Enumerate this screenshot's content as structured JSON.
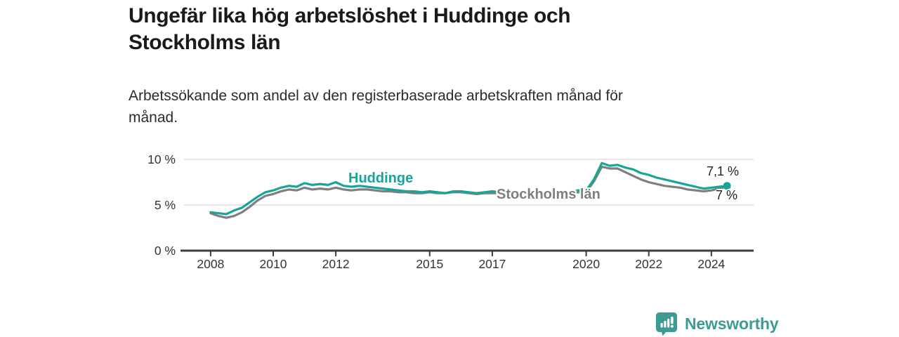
{
  "header": {
    "title_lines": [
      "Ungefär lika hög arbetslöshet i Huddinge och",
      "Stockholms län"
    ],
    "subtitle_lines": [
      "Arbetssökande som andel av den registerbaserade arbetskraften månad för",
      "månad."
    ]
  },
  "colors": {
    "huddinge_teal": "#17a59a",
    "stockholm_gray": "#7f7f7f",
    "grid": "#dddddd",
    "axis": "#3d3d3d",
    "tick_text": "#333333",
    "value_text": "#222222",
    "logo_teal": "#3e9b94"
  },
  "chart_data": {
    "type": "line",
    "title": "Ungefär lika hög arbetslöshet i Huddinge och Stockholms län",
    "subtitle": "Arbetssökande som andel av den registerbaserade arbetskraften månad för månad.",
    "xlabel": "",
    "ylabel": "",
    "xlim": [
      2007.15,
      2025.35
    ],
    "ylim": [
      0,
      10
    ],
    "grid": "horizontal",
    "legend_position": "inline-labels",
    "yticks": [
      {
        "value": 0,
        "label": "0 %"
      },
      {
        "value": 5,
        "label": "5 %"
      },
      {
        "value": 10,
        "label": "10 %"
      }
    ],
    "xticks": [
      {
        "value": 2008,
        "label": "2008"
      },
      {
        "value": 2010,
        "label": "2010"
      },
      {
        "value": 2012,
        "label": "2012"
      },
      {
        "value": 2015,
        "label": "2015"
      },
      {
        "value": 2017,
        "label": "2017"
      },
      {
        "value": 2020,
        "label": "2020"
      },
      {
        "value": 2022,
        "label": "2022"
      },
      {
        "value": 2024,
        "label": "2024"
      }
    ],
    "series": [
      {
        "name": "Stockholms län",
        "color": "#7f7f7f",
        "end_label": "7 %",
        "end_value": 7.0,
        "end_dot": false,
        "points": [
          [
            2008.0,
            4.1
          ],
          [
            2008.25,
            3.8
          ],
          [
            2008.5,
            3.6
          ],
          [
            2008.75,
            3.8
          ],
          [
            2009.0,
            4.2
          ],
          [
            2009.25,
            4.8
          ],
          [
            2009.5,
            5.5
          ],
          [
            2009.75,
            6.0
          ],
          [
            2010.0,
            6.2
          ],
          [
            2010.25,
            6.5
          ],
          [
            2010.5,
            6.7
          ],
          [
            2010.75,
            6.6
          ],
          [
            2011.0,
            6.9
          ],
          [
            2011.25,
            6.7
          ],
          [
            2011.5,
            6.8
          ],
          [
            2011.75,
            6.7
          ],
          [
            2012.0,
            6.9
          ],
          [
            2012.25,
            6.7
          ],
          [
            2012.5,
            6.6
          ],
          [
            2012.75,
            6.7
          ],
          [
            2013.0,
            6.7
          ],
          [
            2013.25,
            6.6
          ],
          [
            2013.5,
            6.5
          ],
          [
            2013.75,
            6.5
          ],
          [
            2014.0,
            6.4
          ],
          [
            2014.25,
            6.4
          ],
          [
            2014.5,
            6.3
          ],
          [
            2014.75,
            6.3
          ],
          [
            2015.0,
            6.4
          ],
          [
            2015.25,
            6.3
          ],
          [
            2015.5,
            6.3
          ],
          [
            2015.75,
            6.4
          ],
          [
            2016.0,
            6.4
          ],
          [
            2016.25,
            6.3
          ],
          [
            2016.5,
            6.2
          ],
          [
            2016.75,
            6.3
          ],
          [
            2017.0,
            6.3
          ],
          [
            2017.25,
            6.3
          ],
          [
            2017.5,
            6.4
          ],
          [
            2017.75,
            6.3
          ],
          [
            2018.0,
            6.2
          ],
          [
            2018.25,
            6.2
          ],
          [
            2018.5,
            6.1
          ],
          [
            2018.75,
            6.2
          ],
          [
            2019.0,
            6.2
          ],
          [
            2019.25,
            6.3
          ],
          [
            2019.5,
            6.3
          ],
          [
            2019.75,
            6.4
          ],
          [
            2020.0,
            6.4
          ],
          [
            2020.25,
            7.6
          ],
          [
            2020.5,
            9.2
          ],
          [
            2020.75,
            9.0
          ],
          [
            2021.0,
            9.0
          ],
          [
            2021.25,
            8.6
          ],
          [
            2021.5,
            8.2
          ],
          [
            2021.75,
            7.8
          ],
          [
            2022.0,
            7.5
          ],
          [
            2022.25,
            7.3
          ],
          [
            2022.5,
            7.1
          ],
          [
            2022.75,
            7.0
          ],
          [
            2023.0,
            6.9
          ],
          [
            2023.25,
            6.7
          ],
          [
            2023.5,
            6.6
          ],
          [
            2023.75,
            6.5
          ],
          [
            2024.0,
            6.6
          ],
          [
            2024.25,
            6.8
          ],
          [
            2024.5,
            7.0
          ]
        ]
      },
      {
        "name": "Huddinge",
        "color": "#17a59a",
        "end_label": "7,1 %",
        "end_value": 7.1,
        "end_dot": true,
        "points": [
          [
            2008.0,
            4.2
          ],
          [
            2008.25,
            4.1
          ],
          [
            2008.5,
            4.0
          ],
          [
            2008.75,
            4.4
          ],
          [
            2009.0,
            4.7
          ],
          [
            2009.25,
            5.3
          ],
          [
            2009.5,
            5.9
          ],
          [
            2009.75,
            6.4
          ],
          [
            2010.0,
            6.6
          ],
          [
            2010.25,
            6.9
          ],
          [
            2010.5,
            7.1
          ],
          [
            2010.75,
            7.0
          ],
          [
            2011.0,
            7.4
          ],
          [
            2011.25,
            7.2
          ],
          [
            2011.5,
            7.3
          ],
          [
            2011.75,
            7.2
          ],
          [
            2012.0,
            7.5
          ],
          [
            2012.25,
            7.1
          ],
          [
            2012.5,
            7.0
          ],
          [
            2012.75,
            7.1
          ],
          [
            2013.0,
            7.0
          ],
          [
            2013.25,
            6.9
          ],
          [
            2013.5,
            6.8
          ],
          [
            2013.75,
            6.7
          ],
          [
            2014.0,
            6.6
          ],
          [
            2014.25,
            6.5
          ],
          [
            2014.5,
            6.5
          ],
          [
            2014.75,
            6.4
          ],
          [
            2015.0,
            6.5
          ],
          [
            2015.25,
            6.4
          ],
          [
            2015.5,
            6.3
          ],
          [
            2015.75,
            6.5
          ],
          [
            2016.0,
            6.5
          ],
          [
            2016.25,
            6.4
          ],
          [
            2016.5,
            6.3
          ],
          [
            2016.75,
            6.4
          ],
          [
            2017.0,
            6.5
          ],
          [
            2017.25,
            6.4
          ],
          [
            2017.5,
            6.5
          ],
          [
            2017.75,
            6.4
          ],
          [
            2018.0,
            6.4
          ],
          [
            2018.25,
            6.3
          ],
          [
            2018.5,
            6.4
          ],
          [
            2018.75,
            6.5
          ],
          [
            2019.0,
            6.4
          ],
          [
            2019.25,
            6.5
          ],
          [
            2019.5,
            6.5
          ],
          [
            2019.75,
            6.6
          ],
          [
            2020.0,
            6.6
          ],
          [
            2020.25,
            7.8
          ],
          [
            2020.5,
            9.6
          ],
          [
            2020.75,
            9.3
          ],
          [
            2021.0,
            9.4
          ],
          [
            2021.25,
            9.1
          ],
          [
            2021.5,
            8.9
          ],
          [
            2021.75,
            8.5
          ],
          [
            2022.0,
            8.3
          ],
          [
            2022.25,
            8.0
          ],
          [
            2022.5,
            7.8
          ],
          [
            2022.75,
            7.6
          ],
          [
            2023.0,
            7.4
          ],
          [
            2023.25,
            7.2
          ],
          [
            2023.5,
            7.0
          ],
          [
            2023.75,
            6.8
          ],
          [
            2024.0,
            6.9
          ],
          [
            2024.25,
            7.0
          ],
          [
            2024.5,
            7.1
          ]
        ]
      }
    ]
  },
  "footer": {
    "brand": "Newsworthy"
  }
}
